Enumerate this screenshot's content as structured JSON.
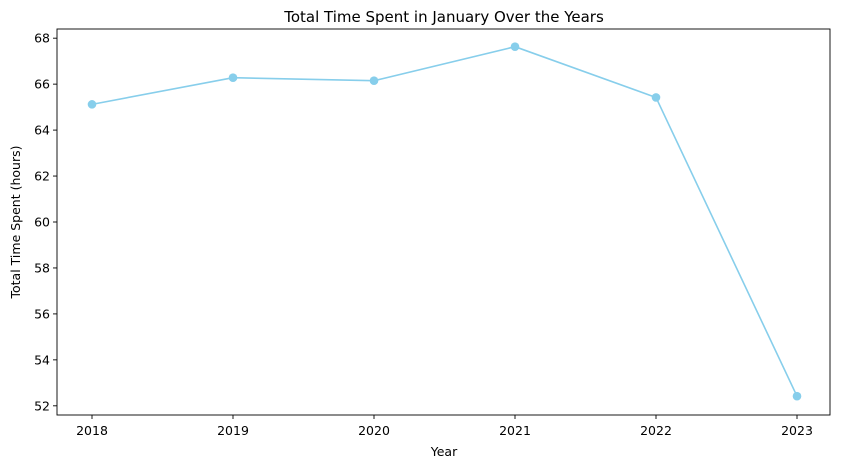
{
  "chart_data": {
    "type": "line",
    "title": "Total Time Spent in January Over the Years",
    "xlabel": "Year",
    "ylabel": "Total Time Spent (hours)",
    "categories": [
      "2018",
      "2019",
      "2020",
      "2021",
      "2022",
      "2023"
    ],
    "series": [
      {
        "values": [
          65.12,
          66.28,
          66.15,
          67.63,
          65.42,
          52.42
        ],
        "color": "#87CEEB",
        "marker": "circle"
      }
    ],
    "yticks": [
      52,
      54,
      56,
      58,
      60,
      62,
      64,
      66,
      68
    ],
    "ylim": [
      51.6,
      68.4
    ],
    "grid": false,
    "legend": false
  }
}
